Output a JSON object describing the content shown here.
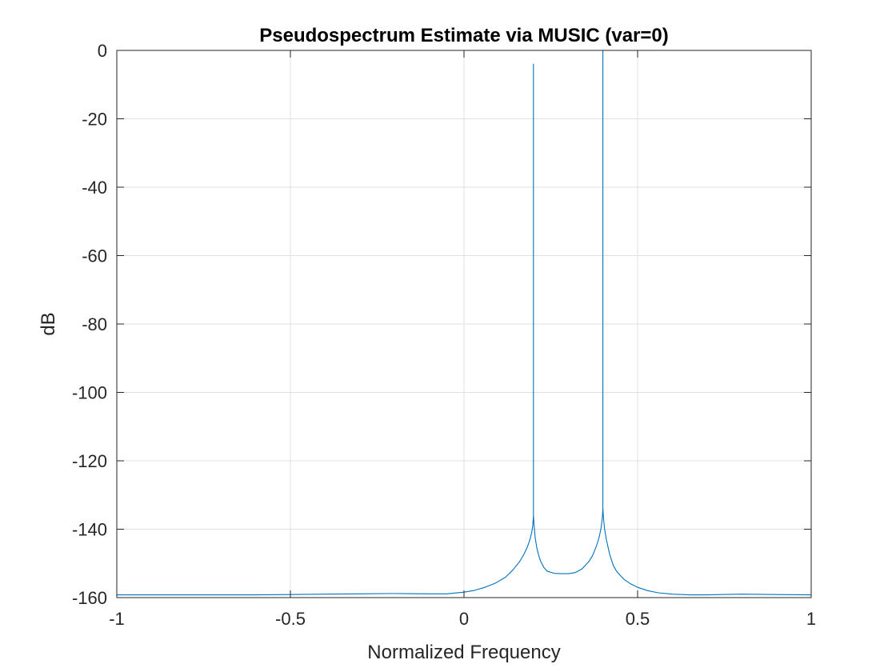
{
  "chart_data": {
    "type": "line",
    "title": "Pseudospectrum Estimate via MUSIC (var=0)",
    "xlabel": "Normalized Frequency",
    "ylabel": "dB",
    "xlim": [
      -1,
      1
    ],
    "ylim": [
      -160,
      0
    ],
    "grid": true,
    "legend": "none",
    "x_ticks": [
      -1,
      -0.5,
      0,
      0.5,
      1
    ],
    "x_tick_labels": [
      "-1",
      "-0.5",
      "0",
      "0.5",
      "1"
    ],
    "y_ticks": [
      0,
      -20,
      -40,
      -60,
      -80,
      -100,
      -120,
      -140,
      -160
    ],
    "y_tick_labels": [
      "0",
      "-20",
      "-40",
      "-60",
      "-80",
      "-100",
      "-120",
      "-140",
      "-160"
    ],
    "line_color": "#0072BD",
    "series": [
      {
        "x": [
          -1,
          -0.9,
          -0.8,
          -0.7,
          -0.6,
          -0.5,
          -0.4,
          -0.3,
          -0.2,
          -0.1,
          -0.05,
          0,
          0.03,
          0.06,
          0.09,
          0.12,
          0.14,
          0.16,
          0.17,
          0.18,
          0.185,
          0.19,
          0.195,
          0.198,
          0.2,
          0.2,
          0.2,
          0.202,
          0.205,
          0.21,
          0.215,
          0.22,
          0.23,
          0.24,
          0.26,
          0.28,
          0.3,
          0.32,
          0.34,
          0.36,
          0.37,
          0.38,
          0.385,
          0.39,
          0.395,
          0.398,
          0.4,
          0.4,
          0.4,
          0.402,
          0.405,
          0.41,
          0.415,
          0.42,
          0.43,
          0.44,
          0.46,
          0.48,
          0.5,
          0.53,
          0.56,
          0.6,
          0.65,
          0.7,
          0.8,
          0.9,
          1
        ],
        "y": [
          -159.2,
          -159.2,
          -159.2,
          -159.2,
          -159.2,
          -159.1,
          -159.0,
          -158.9,
          -158.8,
          -158.9,
          -158.9,
          -158.4,
          -157.9,
          -157.0,
          -155.8,
          -154.0,
          -152.0,
          -149.5,
          -147.8,
          -145.8,
          -144.5,
          -143.0,
          -141.0,
          -139.0,
          -136.0,
          -4.0,
          -136.0,
          -139.0,
          -142.5,
          -145.6,
          -147.6,
          -149.2,
          -151.2,
          -152.3,
          -152.9,
          -153.0,
          -153.0,
          -152.7,
          -151.6,
          -149.4,
          -147.8,
          -145.3,
          -143.8,
          -142.0,
          -139.5,
          -137.0,
          -134.0,
          0,
          -134.0,
          -137.0,
          -140.0,
          -143.0,
          -145.3,
          -147.5,
          -150.6,
          -152.4,
          -154.6,
          -156.0,
          -157.0,
          -158.0,
          -158.6,
          -159.0,
          -159.2,
          -159.2,
          -159.0,
          -159.1,
          -159.2
        ]
      }
    ]
  }
}
